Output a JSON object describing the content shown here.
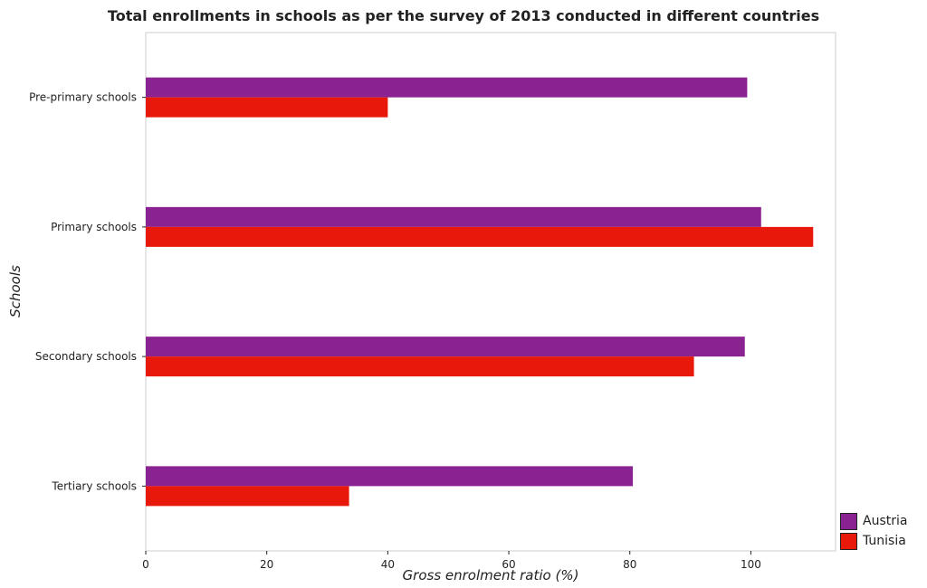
{
  "chart_data": {
    "type": "bar",
    "orientation": "horizontal",
    "title": "Total enrollments in schools as per the survey of 2013 conducted in different countries",
    "xlabel": "Gross enrolment ratio (%)",
    "ylabel": "Schools",
    "xlim": [
      0,
      114
    ],
    "xticks": [
      0,
      20,
      40,
      60,
      80,
      100
    ],
    "categories": [
      "Pre-primary schools",
      "Primary schools",
      "Secondary schools",
      "Tertiary schools"
    ],
    "series": [
      {
        "name": "Austria",
        "color": "#8b2291",
        "values": [
          99.4,
          101.7,
          99.0,
          80.5
        ]
      },
      {
        "name": "Tunisia",
        "color": "#e8180b",
        "values": [
          40.0,
          110.3,
          90.6,
          33.6
        ]
      }
    ],
    "legend_position": "bottom-right",
    "grid": false
  }
}
